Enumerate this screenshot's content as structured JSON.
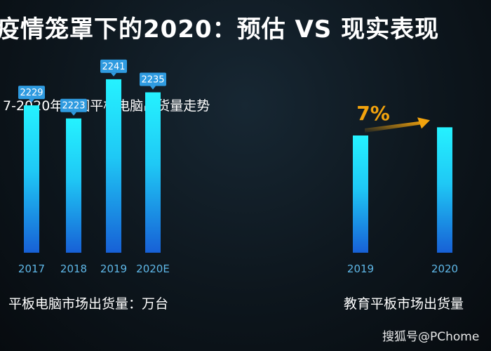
{
  "title": "疫情笼罩下的2020：预估 VS 现实表现",
  "watermark": "搜狐号@PChome",
  "colors": {
    "bar_top": "#25f2ff",
    "bar_bottom": "#1760d6",
    "tick": "#5fb8e8",
    "label_bg": "#2f9be0",
    "arrow": "#f2a30d"
  },
  "chart_data": [
    {
      "type": "bar",
      "title": "7-2020年中国平板电脑出货量走势",
      "caption": "平板电脑市场出货量：万台",
      "categories": [
        "2017",
        "2018",
        "2019",
        "2020E"
      ],
      "values": [
        2229,
        2223,
        2241,
        2235
      ],
      "data_labels": [
        "2229",
        "2223",
        "2241",
        "2235"
      ]
    },
    {
      "type": "bar",
      "caption": "教育平板市场出货量",
      "categories": [
        "2019",
        "2020"
      ],
      "values": [
        100,
        107
      ],
      "annotation": "7%"
    }
  ]
}
